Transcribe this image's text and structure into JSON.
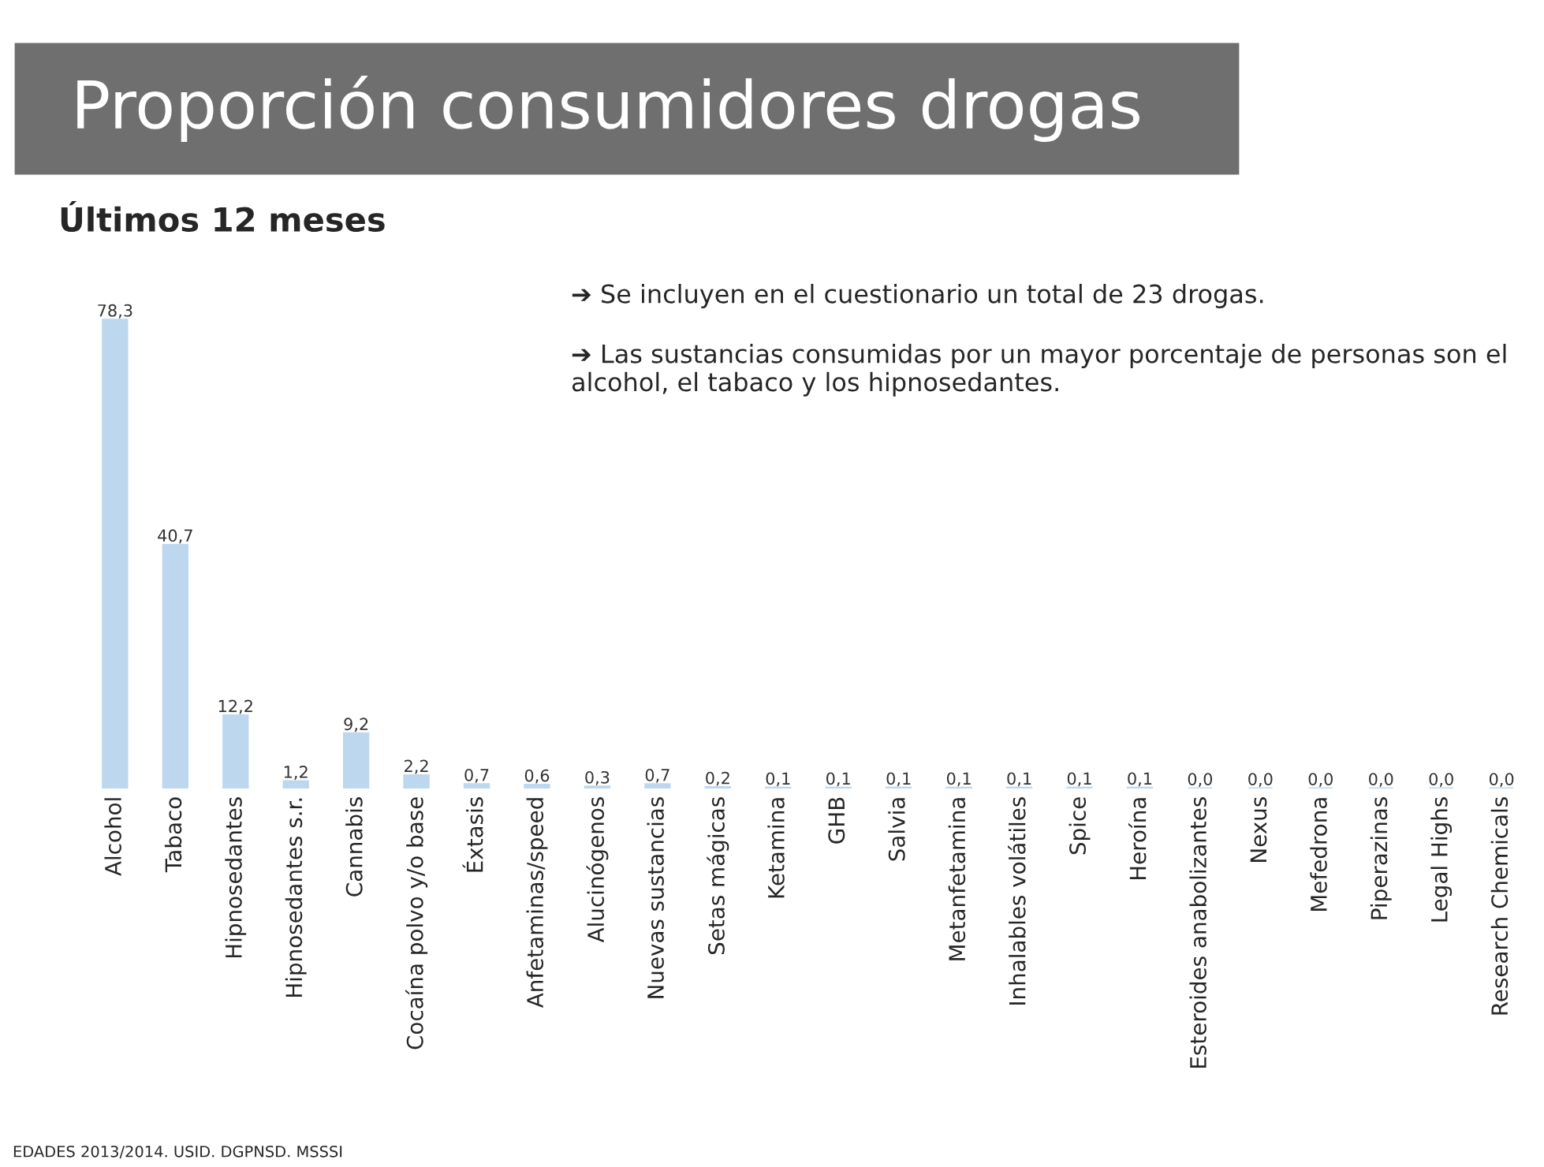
{
  "chart_data": {
    "type": "bar",
    "title": "Proporción consumidores drogas",
    "subtitle": "Últimos 12 meses",
    "categories": [
      "Alcohol",
      "Tabaco",
      "Hipnosedantes",
      "Hipnosedantes s.r.",
      "Cannabis",
      "Cocaína polvo y/o base",
      "Éxtasis",
      "Anfetaminas/speed",
      "Alucinógenos",
      "Nuevas sustancias",
      "Setas mágicas",
      "Ketamina",
      "GHB",
      "Salvia",
      "Metanfetamina",
      "Inhalables volátiles",
      "Spice",
      "Heroína",
      "Esteroides anabolizantes",
      "Nexus",
      "Mefedrona",
      "Piperazinas",
      "Legal Highs",
      "Research Chemicals"
    ],
    "values": [
      78.3,
      40.7,
      12.2,
      1.2,
      9.2,
      2.2,
      0.7,
      0.6,
      0.3,
      0.7,
      0.2,
      0.1,
      0.1,
      0.1,
      0.1,
      0.1,
      0.1,
      0.1,
      0.0,
      0.0,
      0.0,
      0.0,
      0.0,
      0.0
    ],
    "value_labels": [
      "78,3",
      "40,7",
      "12,2",
      "1,2",
      "9,2",
      "2,2",
      "0,7",
      "0,6",
      "0,3",
      "0,7",
      "0,2",
      "0,1",
      "0,1",
      "0,1",
      "0,1",
      "0,1",
      "0,1",
      "0,1",
      "0,0",
      "0,0",
      "0,0",
      "0,0",
      "0,0",
      "0,0"
    ],
    "color": "#bdd7ee",
    "annotations": [
      "➔ Se incluyen en el cuestionario un total de 23 drogas.",
      "➔ Las sustancias consumidas por un mayor porcentaje de personas son el alcohol, el tabaco y los hipnosedantes.",
      "EDADES 2013/2014. USID. DGPNSD. MSSSI"
    ]
  }
}
